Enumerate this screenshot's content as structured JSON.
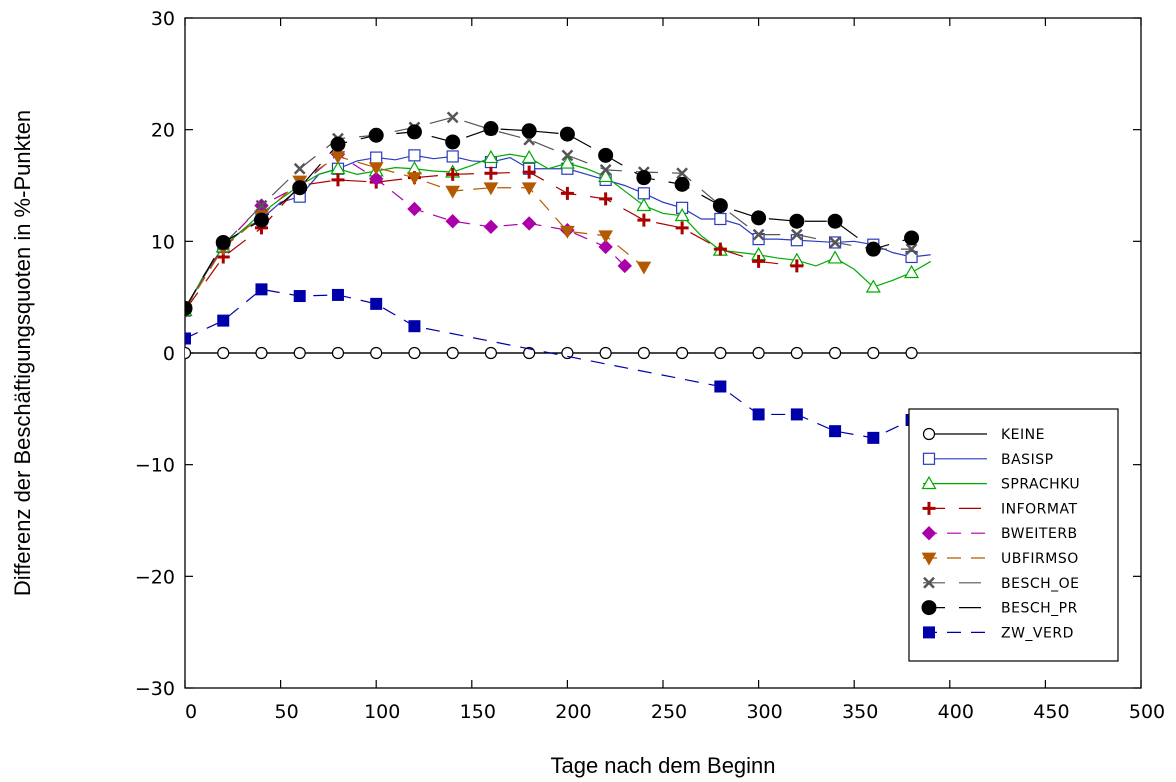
{
  "chart_data": {
    "type": "line",
    "xlabel": "Tage nach dem Beginn",
    "ylabel": "Differenz der Beschäftigungsquoten in %-Punkten",
    "xlim": [
      0,
      500
    ],
    "ylim": [
      -30,
      30
    ],
    "xticks": [
      0,
      50,
      100,
      150,
      200,
      250,
      300,
      350,
      400,
      450,
      500
    ],
    "yticks": [
      -30,
      -20,
      -10,
      0,
      10,
      20,
      30
    ],
    "xtick_labels": [
      "0",
      "50",
      "100",
      "150",
      "200",
      "250",
      "300",
      "350",
      "400",
      "450",
      "500"
    ],
    "ytick_labels": [
      "−30",
      "−20",
      "−10",
      "0",
      "10",
      "20",
      "30"
    ],
    "grid": false,
    "legend_position": "bottom-right",
    "series": [
      {
        "name": "KEINE",
        "marker": "circle-open",
        "color": "#000000",
        "dash": "",
        "x": [
          0,
          20,
          40,
          60,
          80,
          100,
          120,
          140,
          160,
          180,
          200,
          220,
          240,
          260,
          280,
          300,
          320,
          340,
          360,
          380
        ],
        "y": [
          0,
          0,
          0,
          0,
          0,
          0,
          0,
          0,
          0,
          0,
          0,
          0,
          0,
          0,
          0,
          0,
          0,
          0,
          0,
          0
        ]
      },
      {
        "name": "BASISP",
        "marker": "square-open",
        "color": "#2b3bbf",
        "dash": "",
        "x": [
          0,
          10,
          20,
          30,
          40,
          50,
          60,
          70,
          80,
          90,
          100,
          110,
          120,
          130,
          140,
          150,
          160,
          170,
          180,
          190,
          200,
          210,
          220,
          230,
          240,
          250,
          260,
          270,
          280,
          290,
          300,
          310,
          320,
          330,
          340,
          350,
          360,
          370,
          380,
          390
        ],
        "y": [
          3.8,
          7,
          9.5,
          11,
          12,
          13.5,
          14,
          16,
          16.5,
          17.2,
          17.5,
          17.3,
          17.7,
          17.4,
          17.6,
          17.2,
          17.1,
          17.5,
          16.5,
          16.5,
          16.5,
          16,
          15.5,
          15,
          14.3,
          13.5,
          13,
          12,
          12,
          11.5,
          10.2,
          10.2,
          10.1,
          10,
          9.9,
          10,
          9.7,
          9,
          8.6,
          8.8
        ]
      },
      {
        "name": "SPRACHKU",
        "marker": "triangle-open",
        "color": "#00aa00",
        "dash": "",
        "x": [
          0,
          10,
          20,
          30,
          40,
          50,
          60,
          70,
          80,
          90,
          100,
          110,
          120,
          130,
          140,
          150,
          160,
          170,
          180,
          190,
          200,
          210,
          220,
          230,
          240,
          250,
          260,
          270,
          280,
          290,
          300,
          310,
          320,
          330,
          340,
          350,
          360,
          370,
          380,
          390
        ],
        "y": [
          3.8,
          7,
          9.5,
          11,
          12.5,
          13.8,
          15,
          16,
          16.5,
          16,
          16.3,
          16.6,
          16.5,
          16.3,
          16.2,
          16.8,
          17.5,
          17.8,
          17.5,
          16.5,
          17,
          16.5,
          15.8,
          14.5,
          13.2,
          12.5,
          12.3,
          10.5,
          9.2,
          9,
          8.8,
          8.5,
          8.3,
          7.8,
          8.5,
          7.5,
          5.9,
          6.5,
          7.2,
          8.2
        ]
      },
      {
        "name": "INFORMAT",
        "marker": "plus",
        "color": "#aa0000",
        "dash": "22,14",
        "x": [
          0,
          20,
          40,
          60,
          80,
          100,
          120,
          140,
          160,
          180,
          200,
          220,
          240,
          260,
          280,
          300,
          320
        ],
        "y": [
          3.8,
          8.6,
          11.2,
          15,
          15.5,
          15.3,
          15.7,
          16,
          16.1,
          16.2,
          14.3,
          13.8,
          11.9,
          11.2,
          9.3,
          8.2,
          7.8
        ]
      },
      {
        "name": "BWEITERB",
        "marker": "diamond",
        "color": "#aa00aa",
        "dash": "14,10",
        "x": [
          0,
          20,
          40,
          60,
          80,
          100,
          120,
          140,
          160,
          180,
          200,
          220,
          230
        ],
        "y": [
          3.9,
          9.6,
          13.2,
          15,
          17.8,
          15.6,
          12.9,
          11.8,
          11.3,
          11.6,
          11,
          9.5,
          7.8
        ]
      },
      {
        "name": "UBFIRMSO",
        "marker": "triangle-down",
        "color": "#b35a00",
        "dash": "14,10",
        "x": [
          0,
          20,
          40,
          60,
          80,
          100,
          120,
          140,
          160,
          180,
          200,
          220,
          240
        ],
        "y": [
          3.9,
          9.4,
          12.3,
          15.4,
          17.6,
          16.6,
          15.7,
          14.5,
          14.8,
          14.8,
          10.9,
          10.5,
          7.7
        ]
      },
      {
        "name": "BESCH_OE",
        "marker": "x",
        "color": "#555555",
        "dash": "22,14",
        "x": [
          0,
          20,
          40,
          60,
          80,
          100,
          120,
          140,
          160,
          180,
          200,
          220,
          240,
          260,
          280,
          300,
          320,
          340,
          360,
          380
        ],
        "y": [
          4,
          9.7,
          13.2,
          16.5,
          19.2,
          19.5,
          20.2,
          21.1,
          20,
          19.1,
          17.7,
          16.4,
          16.2,
          16.1,
          13.2,
          10.6,
          10.6,
          9.9,
          9.3,
          9.3
        ]
      },
      {
        "name": "BESCH_PR",
        "marker": "circle",
        "color": "#000000",
        "dash": "22,14",
        "x": [
          0,
          20,
          40,
          60,
          80,
          100,
          120,
          140,
          160,
          180,
          200,
          220,
          240,
          260,
          280,
          300,
          320,
          340,
          360,
          380
        ],
        "y": [
          4,
          9.9,
          11.9,
          14.8,
          18.7,
          19.5,
          19.8,
          18.9,
          20.1,
          19.9,
          19.6,
          17.7,
          15.7,
          15.1,
          13.2,
          12.1,
          11.8,
          11.8,
          9.3,
          10.3
        ]
      },
      {
        "name": "ZW_VERD",
        "marker": "square",
        "color": "#0000aa",
        "dash": "14,10",
        "x": [
          0,
          20,
          40,
          60,
          80,
          100,
          120,
          280,
          300,
          320,
          340,
          360,
          380
        ],
        "y": [
          1.3,
          2.9,
          5.7,
          5.1,
          5.2,
          4.4,
          2.4,
          -3,
          -5.5,
          -5.5,
          -7,
          -7.6,
          -6
        ]
      }
    ]
  }
}
